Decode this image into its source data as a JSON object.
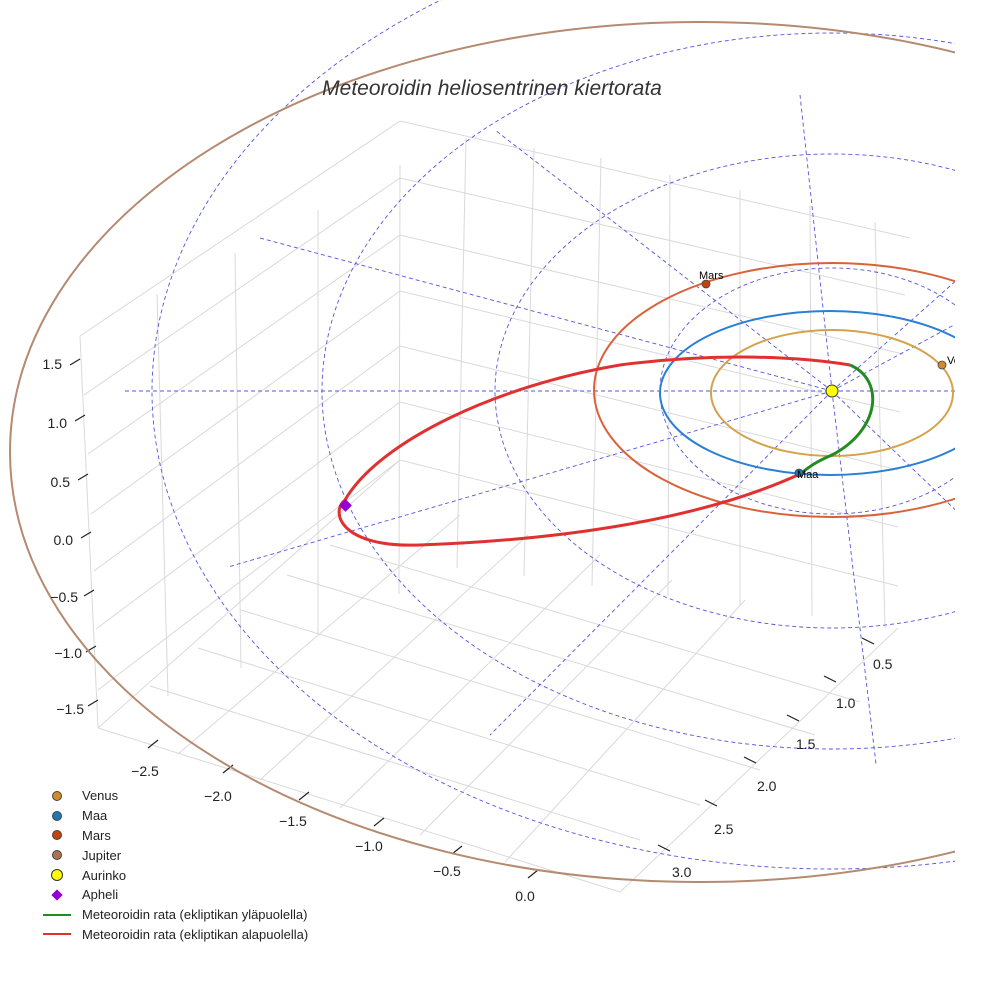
{
  "chart_data": {
    "type": "line",
    "projection": "3d",
    "title": "Meteoroidin heliosentrinen kiertorata",
    "x_ticks": [
      "−2.5",
      "−2.0",
      "−1.5",
      "−1.0",
      "−0.5",
      "0.0"
    ],
    "y_ticks": [
      "0.5",
      "1.0",
      "1.5",
      "2.0",
      "2.5",
      "3.0"
    ],
    "z_ticks": [
      "1.5",
      "1.0",
      "0.5",
      "0.0",
      "−0.5",
      "−1.0",
      "−1.5"
    ],
    "planets": [
      {
        "name": "Venus",
        "label": "Venus",
        "color": "#d08a2c",
        "orbit_color": "#d4a24a",
        "orbit_radius_au": 0.72
      },
      {
        "name": "Maa",
        "label": "Maa",
        "color": "#1f77b4",
        "orbit_color": "#2a7fd6",
        "orbit_radius_au": 1.0
      },
      {
        "name": "Mars",
        "label": "Mars",
        "color": "#c1440e",
        "orbit_color": "#d9623b",
        "orbit_radius_au": 1.52
      },
      {
        "name": "Jupiter",
        "label": "",
        "color": "#b07050",
        "orbit_color": "#b58a70",
        "orbit_radius_au": 5.2
      }
    ],
    "sun": {
      "name": "Aurinko",
      "color": "#ffff00"
    },
    "aphelion": {
      "name": "Apheli",
      "color": "#9400d3"
    },
    "series": [
      {
        "name": "Meteoroidin rata (ekliptikan yläpuolella)",
        "color": "#228b22"
      },
      {
        "name": "Meteoroidin rata (ekliptikan alapuolella)",
        "color": "#e03030"
      }
    ],
    "grid": true,
    "legend_position": "lower-left"
  },
  "legend": [
    {
      "label": "Venus",
      "type": "dot",
      "color": "#d08a2c"
    },
    {
      "label": "Maa",
      "type": "dot",
      "color": "#1f77b4"
    },
    {
      "label": "Mars",
      "type": "dot",
      "color": "#c1440e"
    },
    {
      "label": "Jupiter",
      "type": "dot",
      "color": "#b07050"
    },
    {
      "label": "Aurinko",
      "type": "sun",
      "color": "#ffff00"
    },
    {
      "label": "Apheli",
      "type": "diamond",
      "color": "#9400d3"
    },
    {
      "label": "Meteoroidin rata (ekliptikan yläpuolella)",
      "type": "line",
      "color": "#228b22"
    },
    {
      "label": "Meteoroidin rata (ekliptikan alapuolella)",
      "type": "line",
      "color": "#e03030"
    }
  ]
}
